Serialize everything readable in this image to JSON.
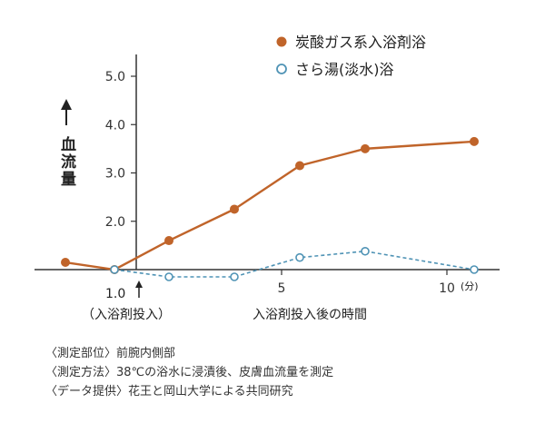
{
  "chart_data": {
    "type": "line",
    "ylabel": "血流量",
    "xlabel": "入浴剤投入後の時間",
    "x_unit": "(分)",
    "x_marker_label": "1.0",
    "x_marker_caption": "（入浴剤投入）",
    "xticks": [
      {
        "x": 5,
        "label": "5"
      },
      {
        "x": 10,
        "label": "10"
      }
    ],
    "yticks": [
      {
        "y": 2.0,
        "label": "2.0"
      },
      {
        "y": 3.0,
        "label": "3.0"
      },
      {
        "y": 4.0,
        "label": "4.0"
      },
      {
        "y": 5.0,
        "label": "5.0"
      }
    ],
    "xlim": [
      -1,
      11
    ],
    "ylim": [
      0.9,
      5.3
    ],
    "series": [
      {
        "name": "炭酸ガス系入浴剤浴",
        "color": "#c0642a",
        "style": "solid",
        "marker": "filled",
        "points": [
          [
            -0.9,
            1.15
          ],
          [
            0,
            1.0
          ],
          [
            1.0,
            1.6
          ],
          [
            2.2,
            2.25
          ],
          [
            3.4,
            3.15
          ],
          [
            4.6,
            3.5
          ],
          [
            6.6,
            3.65
          ]
        ]
      },
      {
        "name": "さら湯(淡水)浴",
        "color": "#4f93b5",
        "style": "dashed",
        "marker": "open",
        "points": [
          [
            0,
            1.0
          ],
          [
            1.0,
            0.85
          ],
          [
            2.2,
            0.85
          ],
          [
            3.4,
            1.25
          ],
          [
            4.6,
            1.38
          ],
          [
            6.6,
            1.0
          ]
        ]
      }
    ],
    "legend_position": "top-right",
    "grid": false
  },
  "notes": [
    "〈測定部位〉前腕内側部",
    "〈測定方法〉38℃の浴水に浸漬後、皮膚血流量を測定",
    "〈データ提供〉花王と岡山大学による共同研究"
  ]
}
